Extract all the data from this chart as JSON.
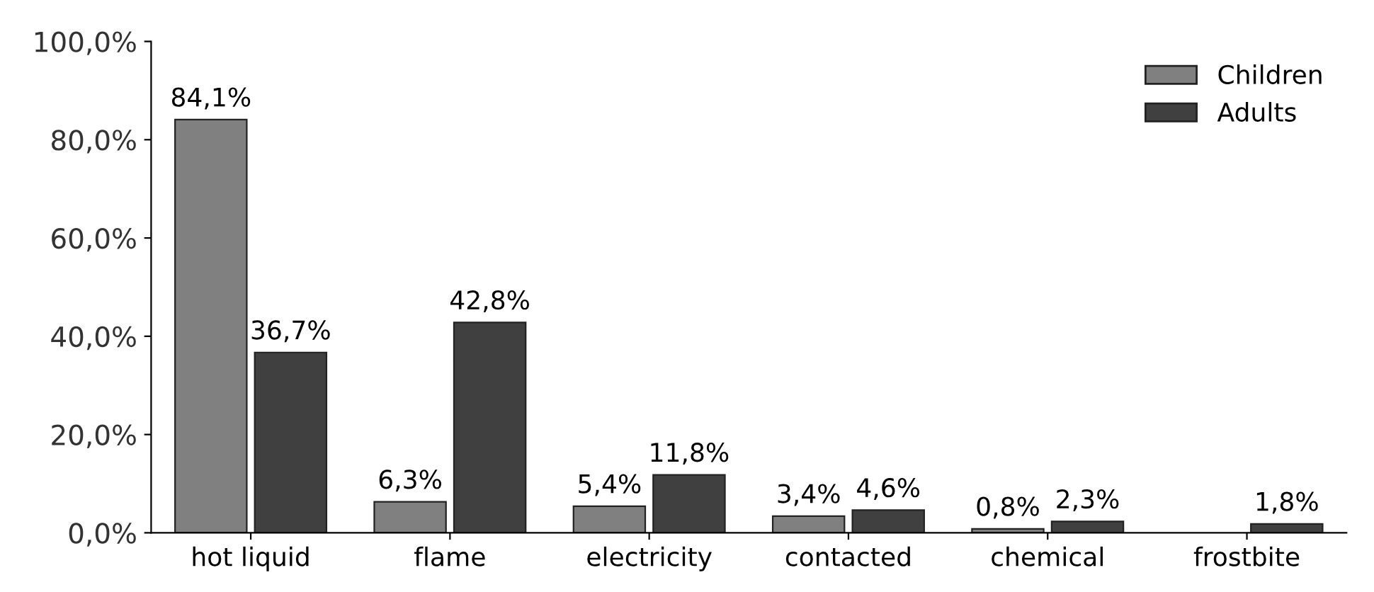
{
  "chart_data": {
    "type": "bar",
    "categories": [
      "hot liquid",
      "flame",
      "electricity",
      "contacted",
      "chemical",
      "frostbite"
    ],
    "series": [
      {
        "name": "Children",
        "color": "#808080",
        "values": [
          84.1,
          6.3,
          5.4,
          3.4,
          0.8,
          null
        ],
        "value_labels": [
          "84,1%",
          "6,3%",
          "5,4%",
          "3,4%",
          "0,8%",
          null
        ]
      },
      {
        "name": "Adults",
        "color": "#404040",
        "values": [
          36.7,
          42.8,
          11.8,
          4.6,
          2.3,
          1.8
        ],
        "value_labels": [
          "36,7%",
          "42,8%",
          "11,8%",
          "4,6%",
          "2,3%",
          "1,8%"
        ]
      }
    ],
    "ylim": [
      0,
      100
    ],
    "yticks": [
      {
        "value": 0,
        "label": "0,0%"
      },
      {
        "value": 20,
        "label": "20,0%"
      },
      {
        "value": 40,
        "label": "40,0%"
      },
      {
        "value": 60,
        "label": "60,0%"
      },
      {
        "value": 80,
        "label": "80,0%"
      },
      {
        "value": 100,
        "label": "100,0%"
      }
    ],
    "grid": false,
    "legend": "top right"
  }
}
